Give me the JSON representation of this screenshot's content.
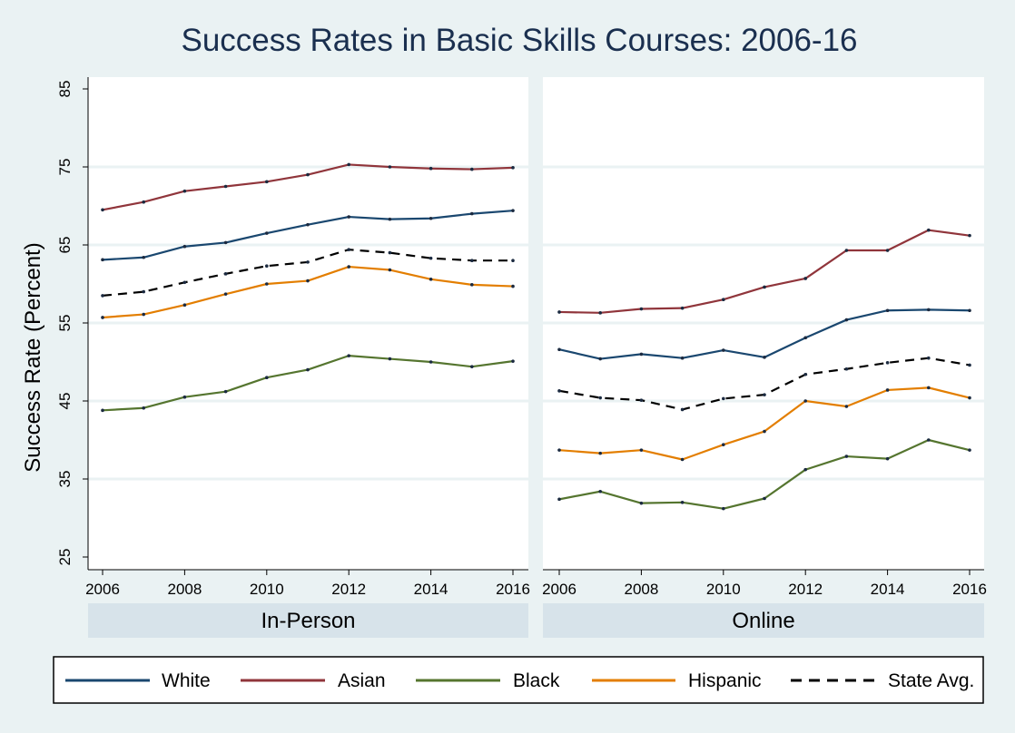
{
  "chart_data": {
    "type": "line",
    "title": "Success Rates in Basic Skills Courses: 2006-16",
    "ylabel": "Success Rate (Percent)",
    "xlabel": "",
    "ylim": [
      25,
      85
    ],
    "yticks": [
      25,
      35,
      45,
      55,
      65,
      75,
      85
    ],
    "xlim": [
      2006,
      2016
    ],
    "xticks": [
      2006,
      2008,
      2010,
      2012,
      2014,
      2016
    ],
    "x": [
      2006,
      2007,
      2008,
      2009,
      2010,
      2011,
      2012,
      2013,
      2014,
      2015,
      2016
    ],
    "grid": true,
    "legend_placement": "bottom",
    "legend": [
      {
        "label": "White",
        "color": "#1a476f",
        "dash": "solid"
      },
      {
        "label": "Asian",
        "color": "#90353b",
        "dash": "solid"
      },
      {
        "label": "Black",
        "color": "#55752f",
        "dash": "solid"
      },
      {
        "label": "Hispanic",
        "color": "#e37e00",
        "dash": "solid"
      },
      {
        "label": "State Avg.",
        "color": "#000000",
        "dash": "dashed"
      }
    ],
    "panels": [
      {
        "label": "In-Person",
        "series": [
          {
            "name": "White",
            "values": [
              63.1,
              63.4,
              64.8,
              65.3,
              66.5,
              67.6,
              68.6,
              68.3,
              68.4,
              69.0,
              69.4
            ]
          },
          {
            "name": "Asian",
            "values": [
              69.5,
              70.5,
              71.9,
              72.5,
              73.1,
              74.0,
              75.3,
              75.0,
              74.8,
              74.7,
              74.9
            ]
          },
          {
            "name": "Black",
            "values": [
              43.8,
              44.1,
              45.5,
              46.2,
              48.0,
              49.0,
              50.8,
              50.4,
              50.0,
              49.4,
              50.1
            ]
          },
          {
            "name": "Hispanic",
            "values": [
              55.7,
              56.1,
              57.3,
              58.7,
              60.0,
              60.4,
              62.2,
              61.8,
              60.6,
              59.9,
              59.7
            ]
          },
          {
            "name": "State Avg.",
            "values": [
              58.5,
              59.0,
              60.2,
              61.3,
              62.3,
              62.8,
              64.4,
              64.0,
              63.3,
              63.0,
              63.0
            ]
          }
        ]
      },
      {
        "label": "Online",
        "series": [
          {
            "name": "White",
            "values": [
              51.6,
              50.4,
              51.0,
              50.5,
              51.5,
              50.6,
              53.1,
              55.4,
              56.6,
              56.7,
              56.6
            ]
          },
          {
            "name": "Asian",
            "values": [
              56.4,
              56.3,
              56.8,
              56.9,
              58.0,
              59.6,
              60.7,
              64.3,
              64.3,
              66.9,
              66.2
            ]
          },
          {
            "name": "Black",
            "values": [
              32.4,
              33.4,
              31.9,
              32.0,
              31.2,
              32.5,
              36.2,
              37.9,
              37.6,
              40.0,
              38.7
            ]
          },
          {
            "name": "Hispanic",
            "values": [
              38.7,
              38.3,
              38.7,
              37.5,
              39.4,
              41.1,
              45.0,
              44.3,
              46.4,
              46.7,
              45.4
            ]
          },
          {
            "name": "State Avg.",
            "values": [
              46.3,
              45.4,
              45.1,
              43.9,
              45.3,
              45.8,
              48.4,
              49.1,
              49.9,
              50.5,
              49.6
            ]
          }
        ]
      }
    ]
  }
}
